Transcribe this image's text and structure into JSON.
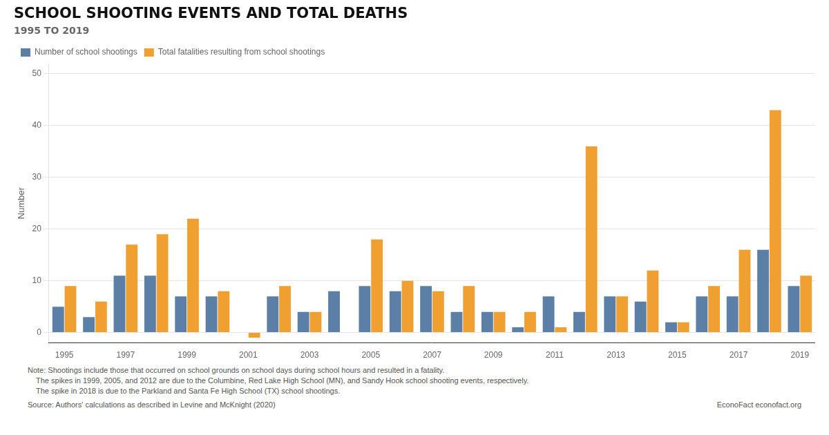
{
  "chart_data": {
    "type": "bar",
    "title": "SCHOOL SHOOTING EVENTS AND TOTAL DEATHS",
    "subtitle": "1995 TO 2019",
    "ylabel": "Number",
    "categories": [
      "1995",
      null,
      "1997",
      null,
      "1999",
      null,
      "2001",
      null,
      "2003",
      null,
      "2005",
      null,
      "2007",
      null,
      "2009",
      null,
      "2011",
      null,
      "2013",
      null,
      "2015",
      null,
      "2017",
      null,
      "2019"
    ],
    "series": [
      {
        "name": "Number of school shootings",
        "color": "#5b7fa6",
        "values": [
          5,
          3,
          11,
          11,
          7,
          7,
          0,
          7,
          4,
          8,
          9,
          8,
          9,
          4,
          4,
          1,
          7,
          4,
          7,
          6,
          2,
          7,
          7,
          16,
          9
        ]
      },
      {
        "name": "Total fatalities resulting from school shootings",
        "color": "#f0a030",
        "values": [
          9,
          6,
          17,
          19,
          22,
          8,
          -1,
          9,
          4,
          0,
          18,
          10,
          8,
          9,
          4,
          4,
          1,
          36,
          7,
          12,
          2,
          9,
          16,
          43,
          11
        ]
      }
    ],
    "ylim": [
      -2,
      52
    ],
    "yticks": [
      0,
      10,
      20,
      30,
      40,
      50
    ],
    "grid": "y",
    "legend": "top",
    "notes": [
      "Note: Shootings include those that occurred on school grounds on school days during school hours and resulted in a fatality.",
      "    The spikes in 1999, 2005, and 2012 are due to the Columbine, Red Lake High School (MN), and Sandy Hook school shooting events, respectively.",
      "    The spike in 2018 is due to the Parkland and Santa Fe High School (TX) school shootings."
    ],
    "source": [
      "Source: Authors' calculations as described in Levine and McKnight (2020)",
      "EconoFact  econofact.org"
    ]
  }
}
